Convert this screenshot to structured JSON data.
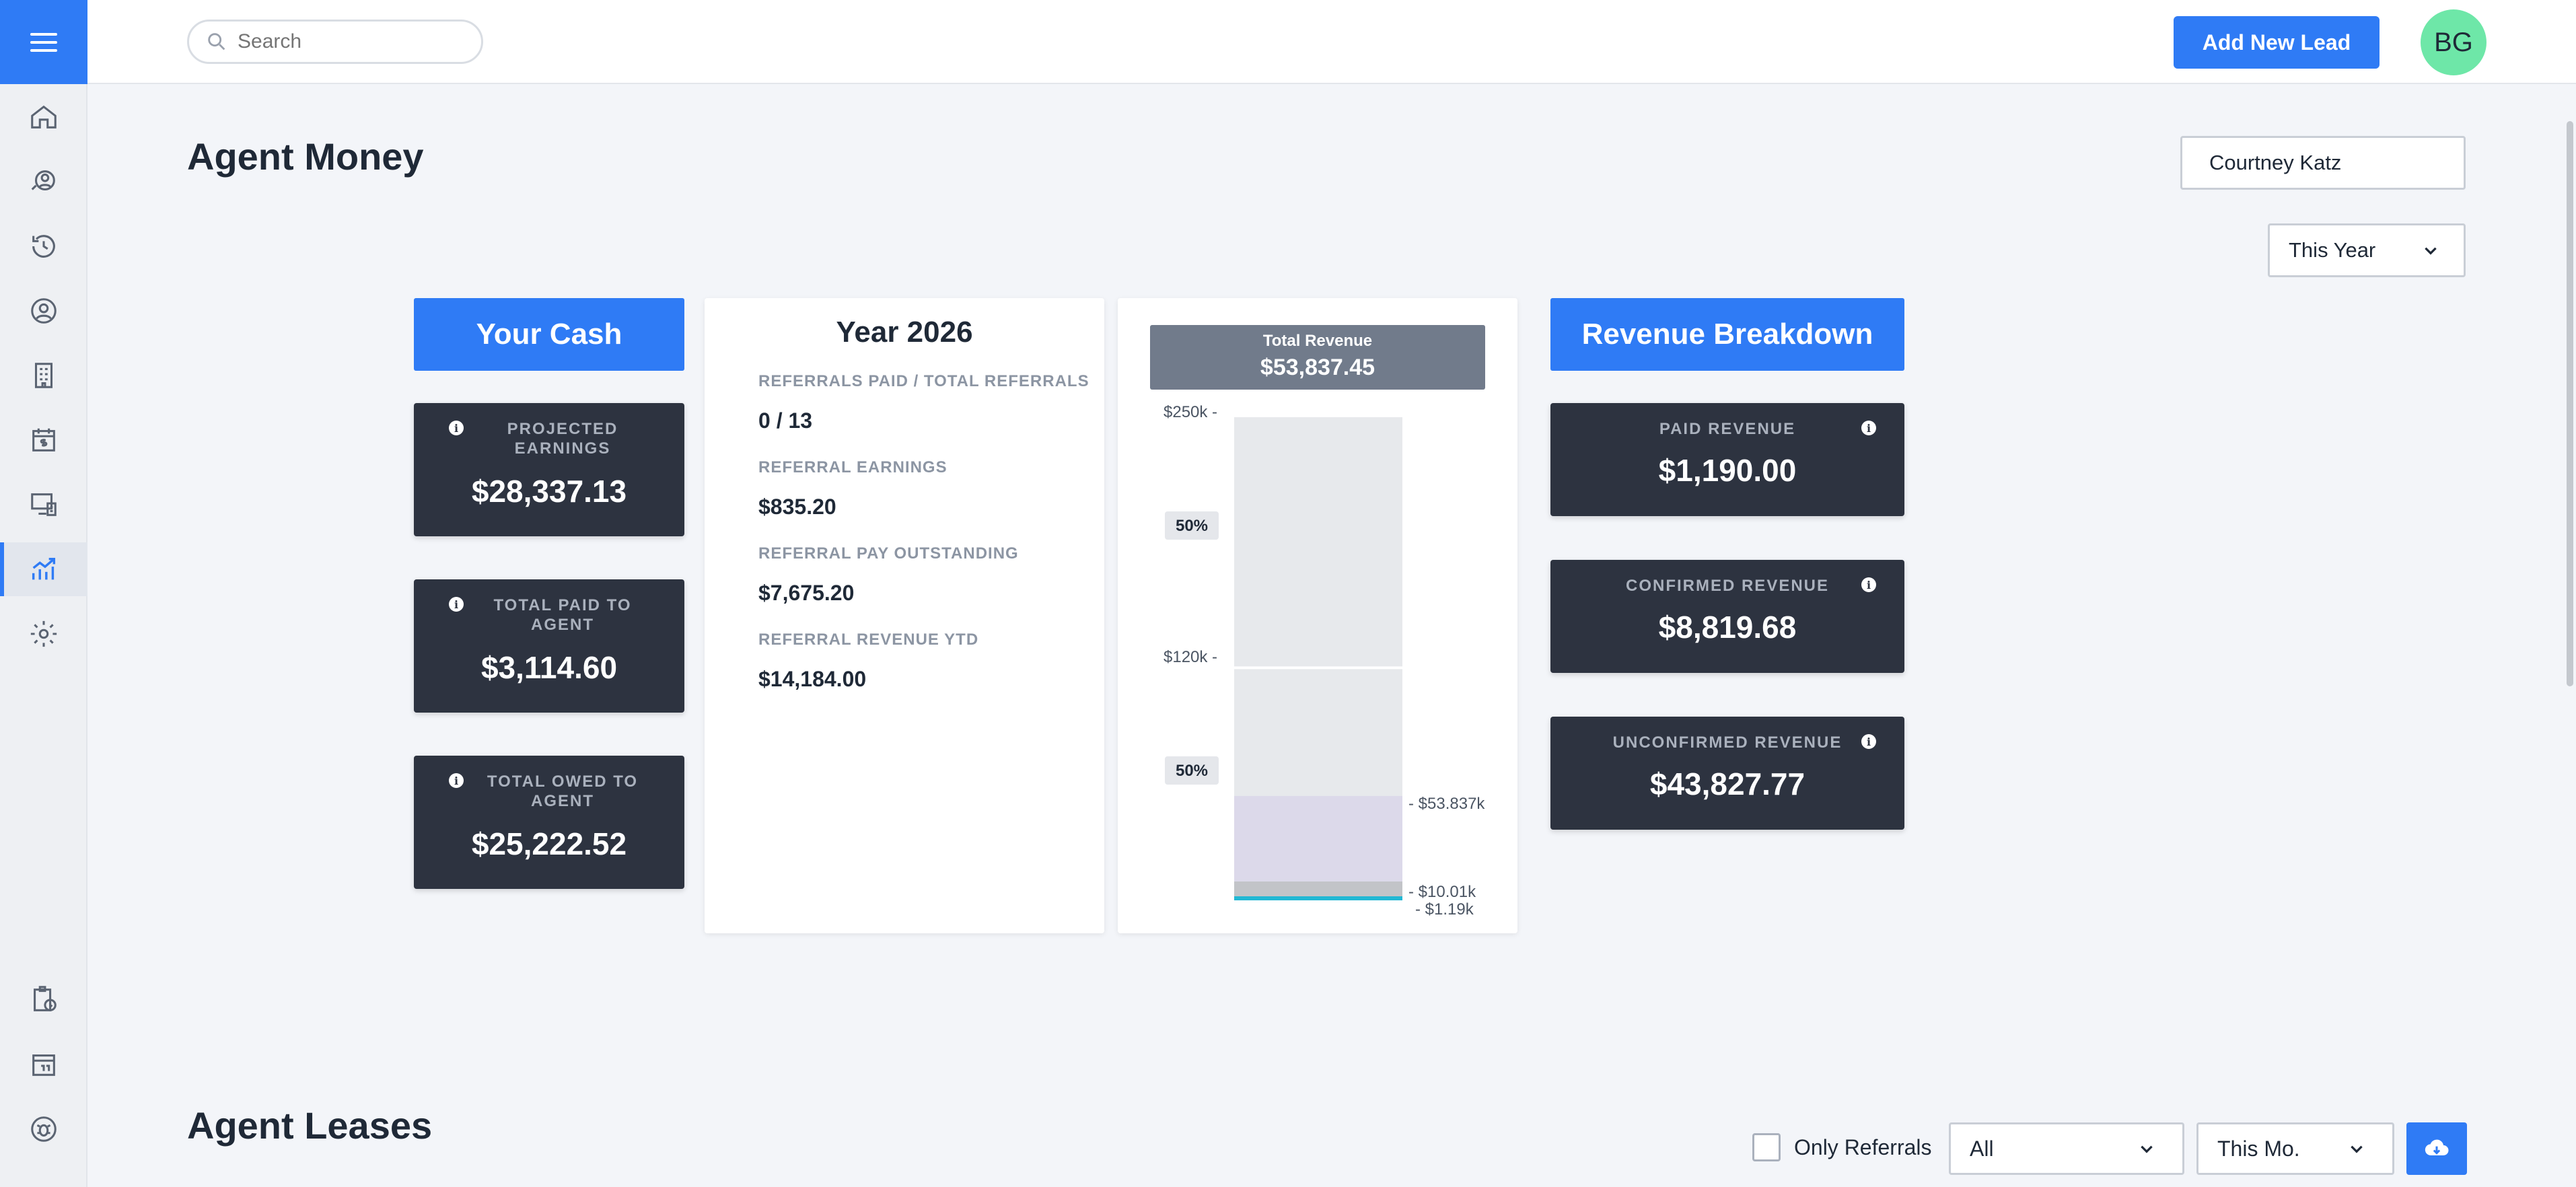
{
  "search": {
    "placeholder": "Search"
  },
  "header": {
    "add_lead_label": "Add New Lead",
    "avatar_initials": "BG"
  },
  "page": {
    "title": "Agent Money"
  },
  "filters": {
    "agent": "Courtney Katz",
    "period": "This Year"
  },
  "your_cash": {
    "title": "Your Cash",
    "cards": [
      {
        "label": "Projected Earnings",
        "value": "$28,337.13"
      },
      {
        "label": "Total Paid To Agent",
        "value": "$3,114.60"
      },
      {
        "label": "Total Owed To Agent",
        "value": "$25,222.52"
      }
    ]
  },
  "year_summary": {
    "title": "Year 2026",
    "rows": [
      {
        "label": "REFERRALS PAID / TOTAL REFERRALS",
        "value": "0 / 13"
      },
      {
        "label": "REFERRAL EARNINGS",
        "value": "$835.20"
      },
      {
        "label": "REFERRAL PAY OUTSTANDING",
        "value": "$7,675.20"
      },
      {
        "label": "REFERRAL REVENUE YTD",
        "value": "$14,184.00"
      }
    ]
  },
  "chart_data": {
    "type": "bar",
    "title": "Total Revenue",
    "total_value": "$53,837.45",
    "y_ticks": [
      "$250k -",
      "$120k -"
    ],
    "percent_labels": [
      "50%",
      "50%"
    ],
    "stack_labels": [
      "- $53.837k",
      "- $10.01k",
      "- $1.19k"
    ],
    "stacked_values": [
      {
        "name": "Paid Revenue",
        "value": 1190.0,
        "color": "#22b8d4"
      },
      {
        "name": "Confirmed Revenue",
        "value": 8819.68,
        "color": "#c2c4c8"
      },
      {
        "name": "Unconfirmed Revenue",
        "value": 43827.77,
        "color": "#dcd9ea"
      }
    ],
    "goals": [
      120000,
      250000
    ],
    "ylim": [
      0,
      250000
    ]
  },
  "revenue_breakdown": {
    "title": "Revenue Breakdown",
    "cards": [
      {
        "label": "Paid Revenue",
        "value": "$1,190.00"
      },
      {
        "label": "Confirmed Revenue",
        "value": "$8,819.68"
      },
      {
        "label": "Unconfirmed Revenue",
        "value": "$43,827.77"
      }
    ]
  },
  "leases": {
    "title": "Agent Leases",
    "only_referrals_label": "Only Referrals",
    "type_filter": "All",
    "period_filter": "This Mo."
  },
  "colors": {
    "accent": "#2f7bf5",
    "card_dark": "#2d3340",
    "avatar": "#6ee7a8"
  }
}
